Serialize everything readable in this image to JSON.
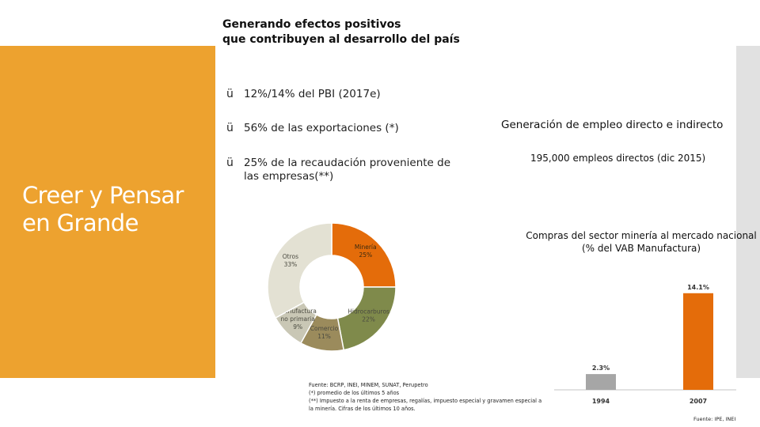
{
  "heading": {
    "line1": "Generando efectos positivos",
    "line2": "que contribuyen al desarrollo del país"
  },
  "tagline": {
    "line1": "Creer y Pensar",
    "line2": "en Grande"
  },
  "bullets": [
    {
      "check": "ü",
      "text": "12%/14% del PBI (2017e)"
    },
    {
      "check": "ü",
      "text": "56% de las exportaciones (*)"
    },
    {
      "check": "ü",
      "text_line1": "25% de la recaudación proveniente de",
      "text_line2": "las empresas(**)"
    }
  ],
  "employment": {
    "title": "Generación de empleo directo e indirecto",
    "subtitle": "195,000 empleos directos (dic 2015)"
  },
  "compras": {
    "line1": "Compras del sector minería al mercado nacional",
    "line2": "(% del VAB Manufactura)"
  },
  "chart_data": [
    {
      "type": "pie",
      "categories": [
        "Minería",
        "Hidrocarburos",
        "Comercio",
        "Manufactura no primaria",
        "Otros"
      ],
      "values": [
        25,
        22,
        11,
        9,
        33
      ],
      "value_labels": [
        "25%",
        "22%",
        "11%",
        "9%",
        "33%"
      ],
      "colors": [
        "#E46C0A",
        "#7F8A4B",
        "#9B8B5C",
        "#C9C7B5",
        "#E3E1D3"
      ],
      "label_lines": [
        [
          "Minería",
          "25%"
        ],
        [
          "Hidrocarburos",
          "22%"
        ],
        [
          "Comercio",
          "11%"
        ],
        [
          "Manufactura",
          "no primaria",
          "9%"
        ],
        [
          "Otros",
          "33%"
        ]
      ]
    },
    {
      "type": "bar",
      "categories": [
        "1994",
        "2007"
      ],
      "values": [
        2.3,
        14.1
      ],
      "value_labels": [
        "2.3%",
        "14.1%"
      ],
      "colors": [
        "#A6A6A6",
        "#E46C0A"
      ],
      "ylim": [
        0,
        15
      ]
    }
  ],
  "notes": [
    "Fuente: BCRP, INEI, MINEM, SUNAT, Perupetro",
    "(*) promedio de los últimos 5 años",
    "(**) Impuesto a la renta de empresas, regalías, impuesto especial y gravamen especial a",
    "la minería. Cifras de los últimos 10 años."
  ],
  "source2": "Fuente: IPE, INEI"
}
